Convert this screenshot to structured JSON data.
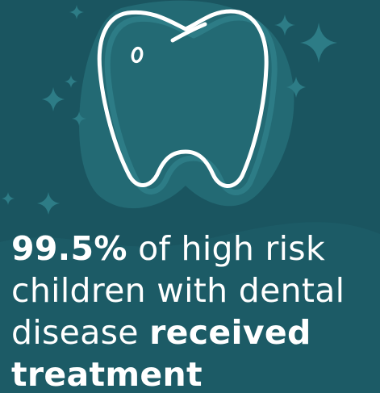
{
  "colors": {
    "background": "#1a5560",
    "accent_shape": "#236a74",
    "sparkle": "#2d7c86",
    "text": "#ffffff"
  },
  "icons": {
    "main": "tooth-icon",
    "decor": "sparkle-icon"
  },
  "stat": {
    "value": "99.5%",
    "line1_rest": " of high risk",
    "line2": "children with dental",
    "line3_start": "disease ",
    "line3_bold": "received",
    "line4_bold": "treatment"
  }
}
